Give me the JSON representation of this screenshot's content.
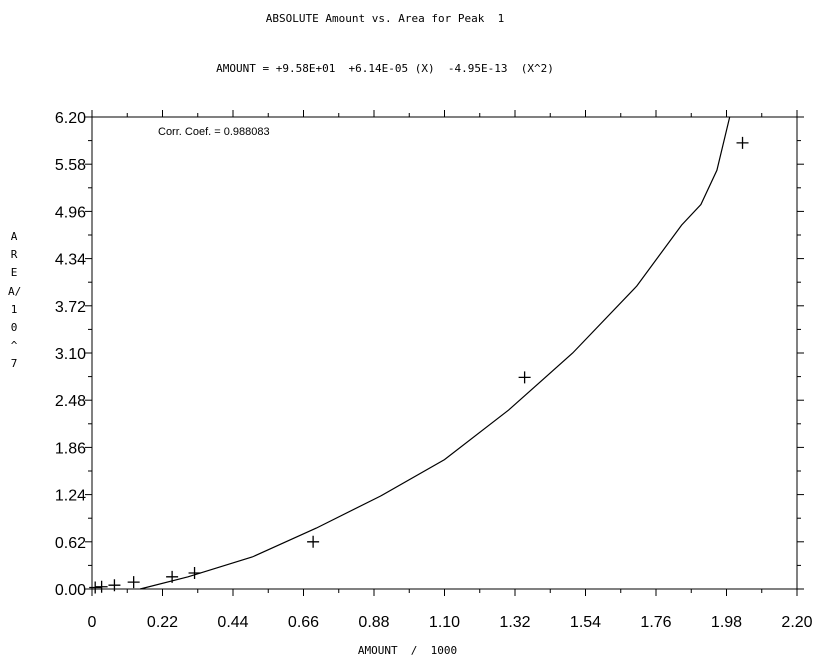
{
  "chart_data": {
    "type": "scatter",
    "title": "ABSOLUTE Amount vs. Area for Peak  1",
    "subtitle": "AMOUNT = +9.58E+01  +6.14E-05 (X)  -4.95E-13  (X^2)",
    "xlabel": "AMOUNT  /  1000",
    "ylabel": "AREA / 10^7",
    "ylabel_vertical": "AREA/10^7",
    "annotation": "Corr. Coef. = 0.988083",
    "xlim": [
      0,
      2.2
    ],
    "ylim": [
      0,
      6.2
    ],
    "x_ticks": [
      "0",
      "0.22",
      "0.44",
      "0.66",
      "0.88",
      "1.10",
      "1.32",
      "1.54",
      "1.76",
      "1.98",
      "2.20"
    ],
    "y_ticks": [
      "0.00",
      "0.62",
      "1.24",
      "1.86",
      "2.48",
      "3.10",
      "3.72",
      "4.34",
      "4.96",
      "5.58",
      "6.20"
    ],
    "points": [
      {
        "x": 0.01,
        "y": 0.02
      },
      {
        "x": 0.03,
        "y": 0.03
      },
      {
        "x": 0.07,
        "y": 0.05
      },
      {
        "x": 0.13,
        "y": 0.09
      },
      {
        "x": 0.25,
        "y": 0.16
      },
      {
        "x": 0.32,
        "y": 0.21
      },
      {
        "x": 0.69,
        "y": 0.62
      },
      {
        "x": 1.35,
        "y": 2.78
      },
      {
        "x": 2.03,
        "y": 5.86
      }
    ],
    "fit_curve": [
      {
        "x": 0.15,
        "y": 0.0
      },
      {
        "x": 0.3,
        "y": 0.16
      },
      {
        "x": 0.5,
        "y": 0.42
      },
      {
        "x": 0.7,
        "y": 0.8
      },
      {
        "x": 0.9,
        "y": 1.22
      },
      {
        "x": 1.1,
        "y": 1.7
      },
      {
        "x": 1.3,
        "y": 2.35
      },
      {
        "x": 1.5,
        "y": 3.1
      },
      {
        "x": 1.7,
        "y": 3.98
      },
      {
        "x": 1.84,
        "y": 4.78
      },
      {
        "x": 1.9,
        "y": 5.05
      },
      {
        "x": 1.95,
        "y": 5.5
      },
      {
        "x": 1.99,
        "y": 6.2
      }
    ],
    "grid": false,
    "legend": "none"
  }
}
